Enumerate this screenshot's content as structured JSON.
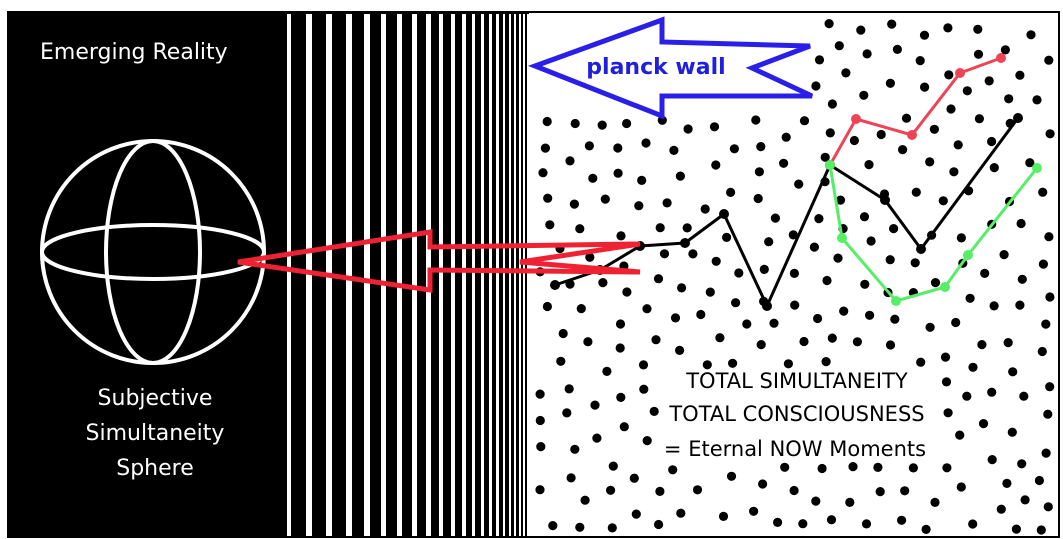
{
  "diagram": {
    "left_panel": {
      "heading": "Emerging  Reality",
      "sphere_label": [
        "Subjective",
        "Simultaneity",
        "Sphere"
      ]
    },
    "right_panel": {
      "arrow_label": "planck wall",
      "caption": [
        "TOTAL SIMULTANEITY",
        "TOTAL CONSCIOUSNESS",
        "= Eternal NOW Moments"
      ]
    },
    "colors": {
      "left_background": "#000000",
      "stripes": "#ffffff",
      "dots": "#000000",
      "planck_arrow": "#2a1fe8",
      "reality_arrow": "#ee2233",
      "path_black": "#000000",
      "path_red": "#ee4455",
      "path_green": "#55ee66"
    },
    "icons": {
      "sphere": "wireframe-sphere-icon",
      "planck_arrow": "left-arrow-outline",
      "reality_arrow": "left-arrow-outline"
    }
  }
}
